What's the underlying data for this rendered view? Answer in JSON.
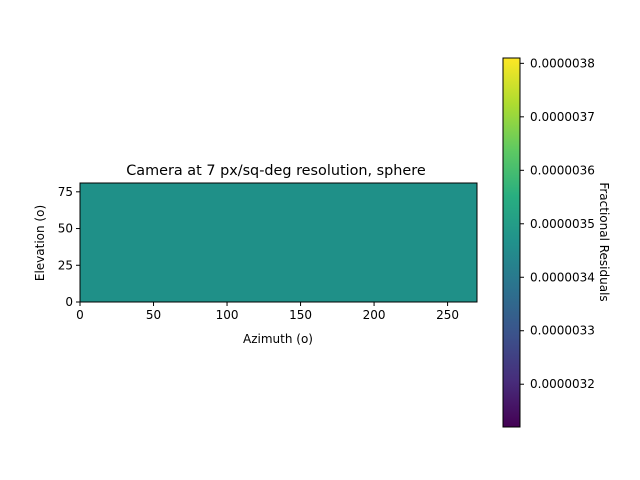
{
  "chart_data": {
    "type": "heatmap",
    "title": "Camera at 7 px/sq-deg resolution, sphere",
    "xlabel": "Azimuth (o)",
    "ylabel": "Elevation (o)",
    "xlim": [
      0,
      270
    ],
    "ylim": [
      0,
      81
    ],
    "xticks": [
      0,
      50,
      100,
      150,
      200,
      250
    ],
    "yticks": [
      0,
      25,
      50,
      75
    ],
    "x_tick_labels": [
      "0",
      "50",
      "100",
      "150",
      "200",
      "250"
    ],
    "y_tick_labels": [
      "0",
      "25",
      "50",
      "75"
    ],
    "value": 3.5e-06,
    "cell_color": "#1f9088",
    "colorbar": {
      "label": "Fractional Residuals",
      "colormap": "viridis",
      "range": [
        3.12e-06,
        3.81e-06
      ],
      "ticks": [
        3.2e-06,
        3.3e-06,
        3.4e-06,
        3.5e-06,
        3.6e-06,
        3.7e-06,
        3.8e-06
      ],
      "tick_labels": [
        "0.0000032",
        "0.0000033",
        "0.0000034",
        "0.0000035",
        "0.0000036",
        "0.0000037",
        "0.0000038"
      ],
      "placement": "right"
    }
  }
}
